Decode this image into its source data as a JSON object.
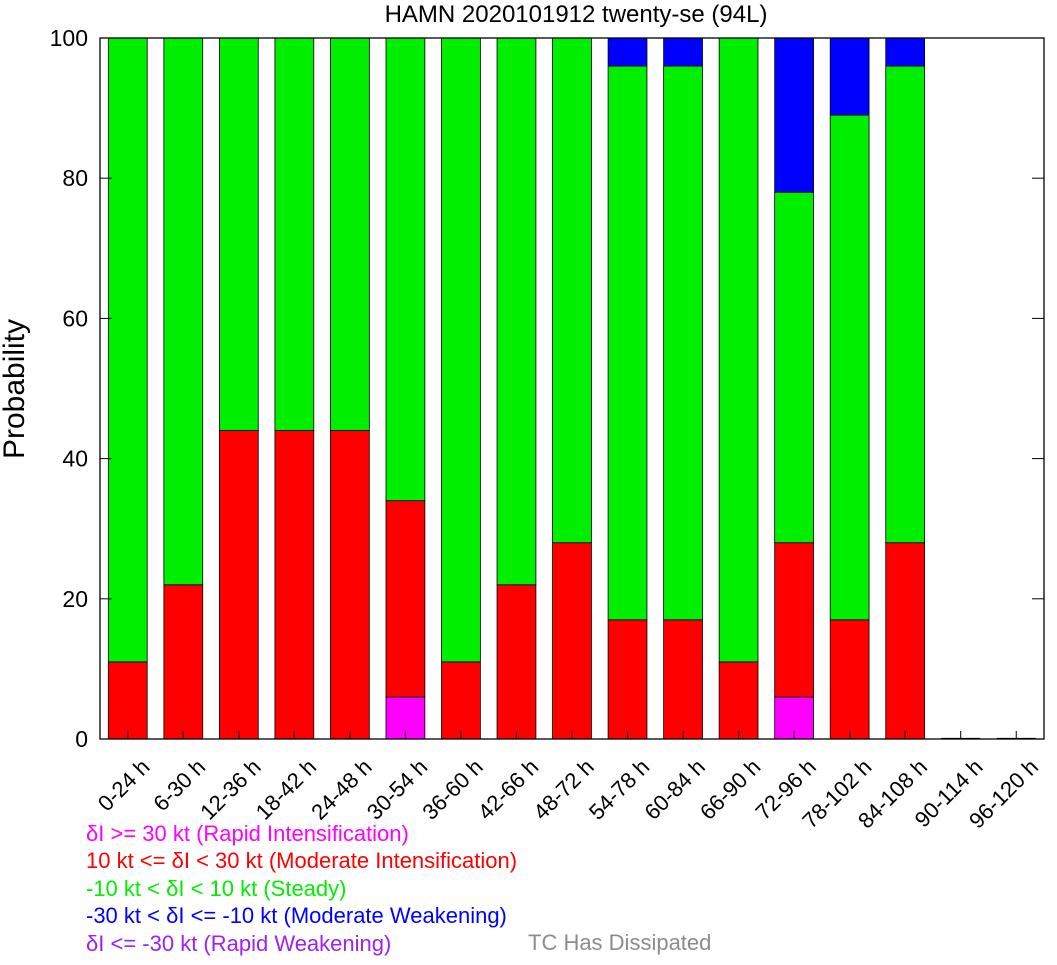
{
  "colors": {
    "rapid_intensification": "#ff00ff",
    "moderate_intensification": "#ff0000",
    "steady": "#00ee00",
    "moderate_weakening": "#0000ff",
    "rapid_weakening": "#a020f0",
    "dissipated": "#8c8c8c"
  },
  "chart_data": {
    "type": "bar",
    "stacked": true,
    "title": "HAMN 2020101912 twenty-se (94L)",
    "xlabel": "",
    "ylabel": "Probability",
    "ylim": [
      0,
      100
    ],
    "yticks": [
      0,
      20,
      40,
      60,
      80,
      100
    ],
    "grid": false,
    "categories": [
      "0-24 h",
      "6-30 h",
      "12-36 h",
      "18-42 h",
      "24-48 h",
      "30-54 h",
      "36-60 h",
      "42-66 h",
      "48-72 h",
      "54-78 h",
      "60-84 h",
      "66-90 h",
      "72-96 h",
      "78-102 h",
      "84-108 h",
      "90-114 h",
      "96-120 h"
    ],
    "series": [
      {
        "color_key": "rapid_intensification",
        "values": [
          0,
          0,
          0,
          0,
          0,
          6,
          0,
          0,
          0,
          0,
          0,
          0,
          6,
          0,
          0,
          0,
          0
        ]
      },
      {
        "color_key": "moderate_intensification",
        "values": [
          11,
          22,
          44,
          44,
          44,
          28,
          11,
          22,
          28,
          17,
          17,
          11,
          22,
          17,
          28,
          0,
          0
        ]
      },
      {
        "color_key": "steady",
        "values": [
          89,
          78,
          56,
          56,
          56,
          66,
          89,
          78,
          72,
          79,
          79,
          89,
          50,
          72,
          68,
          0,
          0
        ]
      },
      {
        "color_key": "moderate_weakening",
        "values": [
          0,
          0,
          0,
          0,
          0,
          0,
          0,
          0,
          0,
          4,
          4,
          0,
          22,
          11,
          4,
          0,
          0
        ]
      },
      {
        "color_key": "rapid_weakening",
        "values": [
          0,
          0,
          0,
          0,
          0,
          0,
          0,
          0,
          0,
          0,
          0,
          0,
          0,
          0,
          0,
          0,
          0
        ]
      }
    ]
  },
  "legend": {
    "items": [
      {
        "text": "δI >= 30 kt (Rapid Intensification)",
        "color_key": "rapid_intensification"
      },
      {
        "text": "10 kt <= δI < 30 kt (Moderate Intensification)",
        "color_key": "moderate_intensification"
      },
      {
        "text": "-10 kt < δI < 10 kt (Steady)",
        "color_key": "steady"
      },
      {
        "text": "-30 kt < δI <= -10 kt (Moderate Weakening)",
        "color_key": "moderate_weakening"
      },
      {
        "text": "δI <= -30 kt (Rapid Weakening)",
        "color_key": "rapid_weakening"
      }
    ],
    "dissipated": "TC Has Dissipated"
  }
}
